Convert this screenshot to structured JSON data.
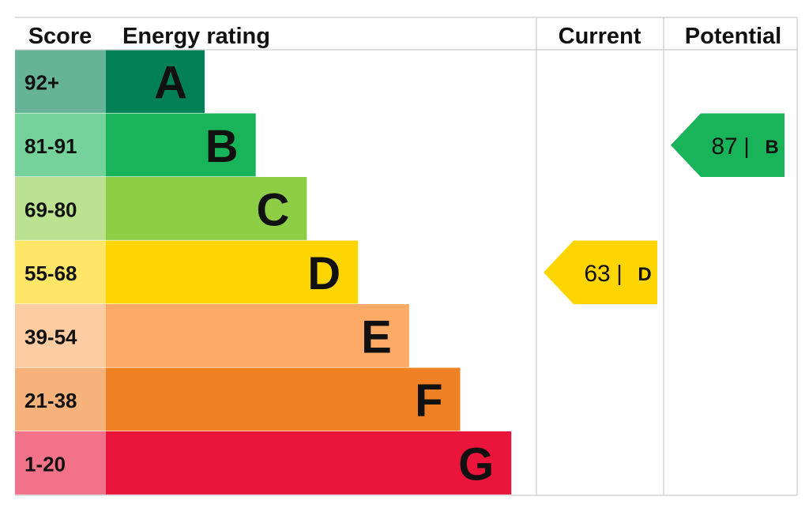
{
  "headers": {
    "score": "Score",
    "energy_rating": "Energy rating",
    "current": "Current",
    "potential": "Potential"
  },
  "chart_data": {
    "type": "bar",
    "bands": [
      {
        "letter": "A",
        "range": "92+",
        "color": "#008054",
        "score_bg": "#66b398"
      },
      {
        "letter": "B",
        "range": "81-91",
        "color": "#19b459",
        "score_bg": "#75d29b"
      },
      {
        "letter": "C",
        "range": "69-80",
        "color": "#8dce46",
        "score_bg": "#bbe290"
      },
      {
        "letter": "D",
        "range": "55-68",
        "color": "#ffd500",
        "score_bg": "#ffe666"
      },
      {
        "letter": "E",
        "range": "39-54",
        "color": "#fcaa65",
        "score_bg": "#fdcca3"
      },
      {
        "letter": "F",
        "range": "21-38",
        "color": "#ef8023",
        "score_bg": "#f5b37b"
      },
      {
        "letter": "G",
        "range": "1-20",
        "color": "#e9153b",
        "score_bg": "#f27389"
      }
    ],
    "current": {
      "value": 63,
      "band": "D",
      "color": "#ffd500"
    },
    "potential": {
      "value": 87,
      "band": "B",
      "color": "#19b459"
    },
    "separator": "|"
  }
}
